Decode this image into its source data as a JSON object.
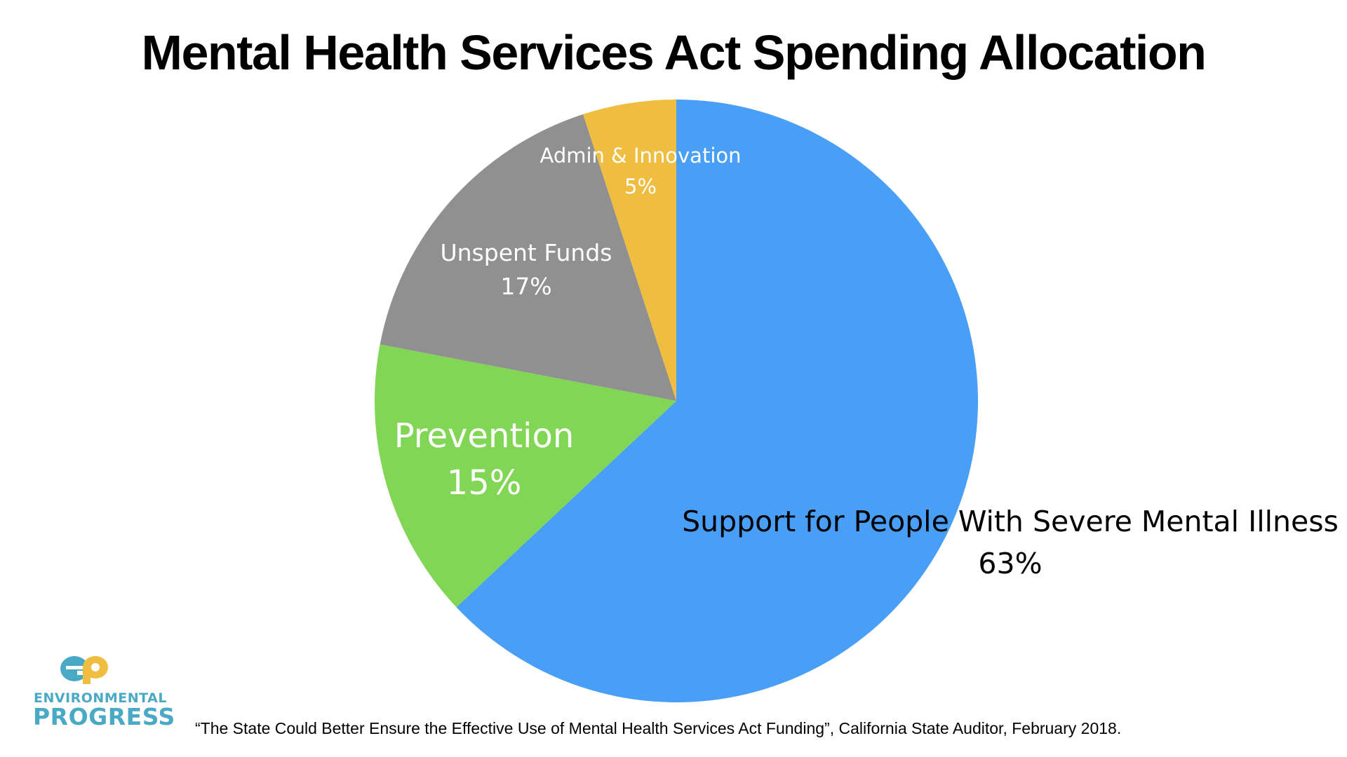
{
  "chart_data": {
    "type": "pie",
    "title": "Mental Health Services Act Spending Allocation",
    "start_angle_deg": 0,
    "direction": "clockwise",
    "slices": [
      {
        "label": "Support for People With Severe Mental Illness",
        "value": 63,
        "value_label": "63%",
        "color": "#499ef5",
        "label_color": "#000000"
      },
      {
        "label": "Prevention",
        "value": 15,
        "value_label": "15%",
        "color": "#82d655",
        "label_color": "#ffffff"
      },
      {
        "label": "Unspent Funds",
        "value": 17,
        "value_label": "17%",
        "color": "#909090",
        "label_color": "#ffffff"
      },
      {
        "label": "Admin & Innovation",
        "value": 5,
        "value_label": "5%",
        "color": "#efbd40",
        "label_color": "#ffffff"
      }
    ]
  },
  "logo": {
    "mark": "ep",
    "line1": "ENVIRONMENTAL",
    "line2": "PROGRESS",
    "colors": {
      "teal": "#4aa9c4",
      "gold": "#efbd40"
    }
  },
  "source_note": "“The State Could Better Ensure the Effective Use of Mental Health Services Act Funding”, California State Auditor, February 2018."
}
